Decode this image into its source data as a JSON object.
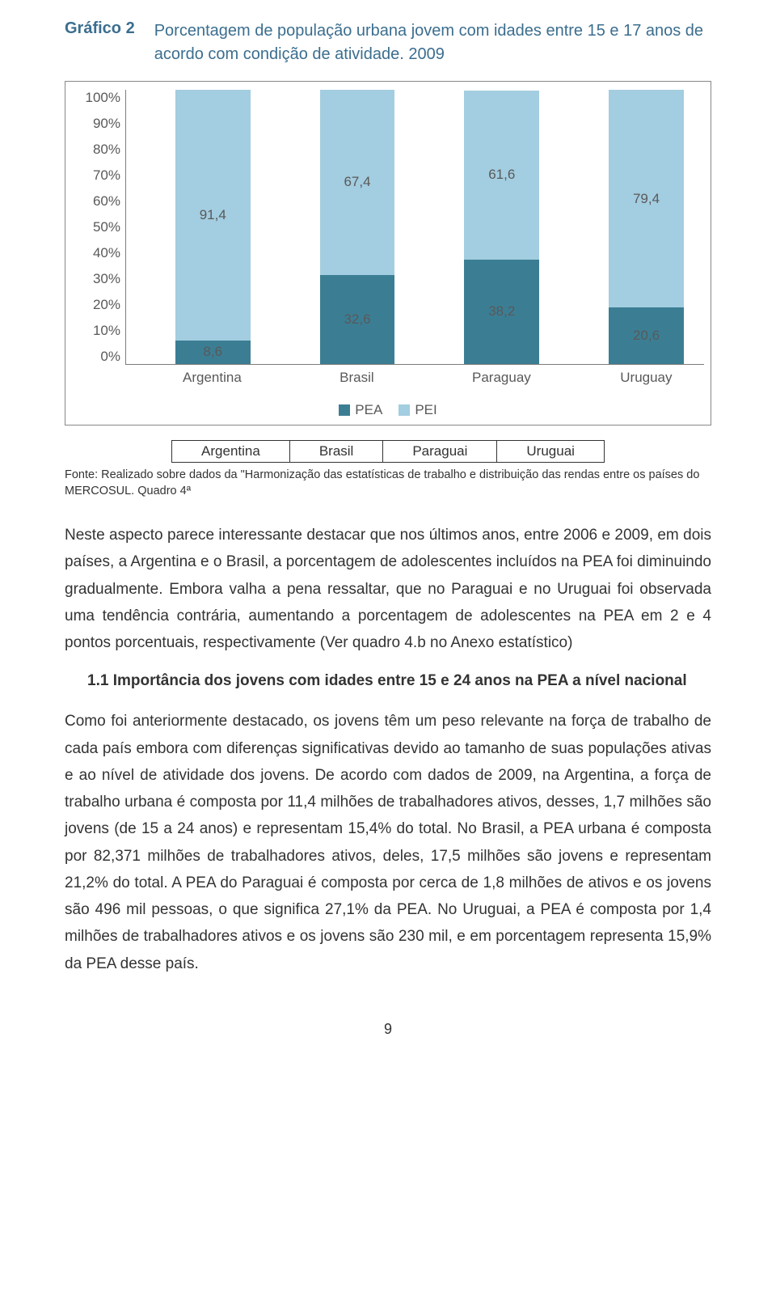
{
  "title": {
    "label": "Gráfico 2",
    "text": "Porcentagem de população urbana jovem com idades entre 15 e 17 anos de acordo com condição de atividade. 2009"
  },
  "chart": {
    "type": "stacked-bar",
    "y_ticks": [
      "100%",
      "90%",
      "80%",
      "70%",
      "60%",
      "50%",
      "40%",
      "30%",
      "20%",
      "10%",
      "0%"
    ],
    "categories": [
      "Argentina",
      "Brasil",
      "Paraguay",
      "Uruguay"
    ],
    "positions_pct": [
      15,
      40,
      65,
      90
    ],
    "series": [
      {
        "name": "PEA",
        "color": "#3b7e94"
      },
      {
        "name": "PEI",
        "color": "#a3cde0"
      }
    ],
    "bars": [
      {
        "pea": 8.6,
        "pei": 91.4,
        "pea_label": "8,6",
        "pei_label": "91,4"
      },
      {
        "pea": 32.6,
        "pei": 67.4,
        "pea_label": "32,6",
        "pei_label": "67,4"
      },
      {
        "pea": 38.2,
        "pei": 61.6,
        "pea_label": "38,2",
        "pei_label": "61,6"
      },
      {
        "pea": 20.6,
        "pei": 79.4,
        "pea_label": "20,6",
        "pei_label": "79,4"
      }
    ],
    "bar_width_pct": 13,
    "legend": {
      "pea": "PEA",
      "pei": "PEI"
    },
    "axis_text_color": "#595959"
  },
  "meta_table": {
    "cells": [
      "Argentina",
      "Brasil",
      "Paraguai",
      "Uruguai"
    ]
  },
  "fonte": "Fonte: Realizado sobre dados da \"Harmonização das estatísticas de trabalho e distribuição das rendas entre os países do MERCOSUL. Quadro 4ª",
  "para1": "Neste aspecto parece interessante destacar que nos últimos anos, entre 2006 e 2009, em dois países, a Argentina e o Brasil, a porcentagem de adolescentes incluídos na PEA foi diminuindo gradualmente. Embora valha a pena ressaltar, que no Paraguai e no Uruguai foi observada uma tendência contrária, aumentando a porcentagem de adolescentes na PEA em 2 e 4 pontos porcentuais, respectivamente (Ver quadro 4.b no Anexo estatístico)",
  "subhead": "1.1 Importância dos jovens com idades entre 15 e 24 anos na PEA a nível nacional",
  "para2": "Como foi anteriormente destacado, os jovens têm um peso relevante na força de trabalho de cada país embora com diferenças significativas devido ao tamanho de suas populações ativas e ao nível de atividade dos jovens. De acordo com dados de 2009, na Argentina, a força de trabalho urbana é composta por 11,4 milhões de trabalhadores ativos, desses, 1,7 milhões são jovens (de 15 a 24 anos) e representam 15,4% do total. No Brasil, a PEA urbana é composta por 82,371 milhões de trabalhadores ativos, deles, 17,5 milhões são jovens e representam 21,2% do total. A PEA do Paraguai é composta por cerca de 1,8 milhões de ativos e os jovens são 496 mil pessoas, o que significa 27,1% da PEA. No Uruguai, a PEA é composta por 1,4 milhões de trabalhadores ativos e os jovens são 230 mil, e em porcentagem representa 15,9% da PEA desse país.",
  "pagenum": "9"
}
